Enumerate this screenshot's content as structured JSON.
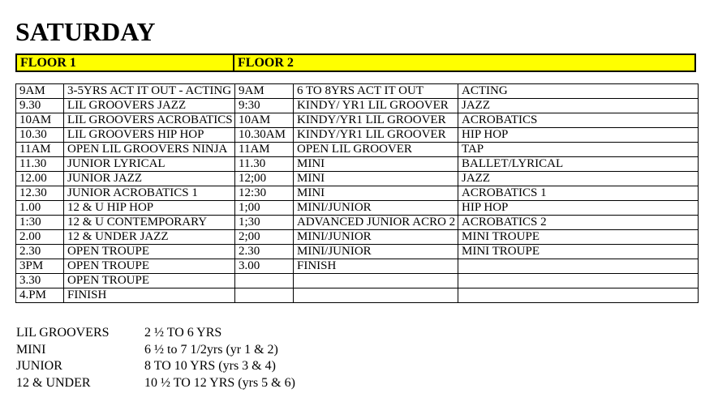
{
  "title": "SATURDAY",
  "colors": {
    "highlight": "#FFFF00",
    "border": "#000000",
    "text": "#000000"
  },
  "floors": {
    "floor1_label": "FLOOR 1",
    "floor2_label": "FLOOR 2"
  },
  "schedule_rows": [
    {
      "f1_time": "9AM",
      "f1_class": "3-5YRS ACT IT OUT - ACTING",
      "f2_time": "9AM",
      "f2_group": "6 TO 8YRS ACT IT OUT",
      "f2_style": "ACTING"
    },
    {
      "f1_time": "9.30",
      "f1_class": "LIL GROOVERS JAZZ",
      "f2_time": "9:30",
      "f2_group": "KINDY/ YR1 LIL GROOVER",
      "f2_style": "JAZZ"
    },
    {
      "f1_time": "10AM",
      "f1_class": "LIL GROOVERS ACROBATICS",
      "f2_time": "10AM",
      "f2_group": "KINDY/YR1 LIL GROOVER",
      "f2_style": "ACROBATICS"
    },
    {
      "f1_time": "10.30",
      "f1_class": "LIL GROOVERS HIP HOP",
      "f2_time": "10.30AM",
      "f2_group": "KINDY/YR1 LIL GROOVER",
      "f2_style": "HIP HOP"
    },
    {
      "f1_time": "11AM",
      "f1_class": "OPEN LIL GROOVERS NINJA",
      "f2_time": "11AM",
      "f2_group": "OPEN LIL GROOVER",
      "f2_style": "TAP"
    },
    {
      "f1_time": "11.30",
      "f1_class": "JUNIOR LYRICAL",
      "f2_time": "11.30",
      "f2_group": "MINI",
      "f2_style": "BALLET/LYRICAL"
    },
    {
      "f1_time": "12.00",
      "f1_class": "JUNIOR JAZZ",
      "f2_time": "12;00",
      "f2_group": "MINI",
      "f2_style": "JAZZ"
    },
    {
      "f1_time": "12.30",
      "f1_class": "JUNIOR ACROBATICS 1",
      "f2_time": "12:30",
      "f2_group": "MINI",
      "f2_style": "ACROBATICS 1"
    },
    {
      "f1_time": "1.00",
      "f1_class": "12 & U HIP HOP",
      "f2_time": "1;00",
      "f2_group": "MINI/JUNIOR",
      "f2_style": "HIP HOP"
    },
    {
      "f1_time": "1:30",
      "f1_class": "12 & U CONTEMPORARY",
      "f2_time": "1;30",
      "f2_group": "ADVANCED JUNIOR ACRO 2",
      "f2_style": "ACROBATICS 2"
    },
    {
      "f1_time": "2.00",
      "f1_class": "12 & UNDER JAZZ",
      "f2_time": "2;00",
      "f2_group": "MINI/JUNIOR",
      "f2_style": "MINI TROUPE"
    },
    {
      "f1_time": "2.30",
      "f1_class": "OPEN TROUPE",
      "f2_time": "2.30",
      "f2_group": "MINI/JUNIOR",
      "f2_style": "MINI TROUPE"
    },
    {
      "f1_time": "3PM",
      "f1_class": "OPEN TROUPE",
      "f2_time": "3.00",
      "f2_group": "FINISH",
      "f2_style": ""
    },
    {
      "f1_time": "3.30",
      "f1_class": "OPEN TROUPE",
      "f2_time": "",
      "f2_group": "",
      "f2_style": ""
    },
    {
      "f1_time": "4.PM",
      "f1_class": "FINISH",
      "f2_time": "",
      "f2_group": "",
      "f2_style": ""
    }
  ],
  "legend": [
    {
      "group": "LIL GROOVERS",
      "ages": "2 ½ TO 6 YRS"
    },
    {
      "group": "MINI",
      "ages": "6 ½ to 7 1/2yrs (yr 1 & 2)"
    },
    {
      "group": "JUNIOR",
      "ages": "8 TO 10 YRS (yrs 3 & 4)"
    },
    {
      "group": "12 & UNDER",
      "ages": "10 ½ TO 12 YRS (yrs 5 & 6)"
    }
  ]
}
